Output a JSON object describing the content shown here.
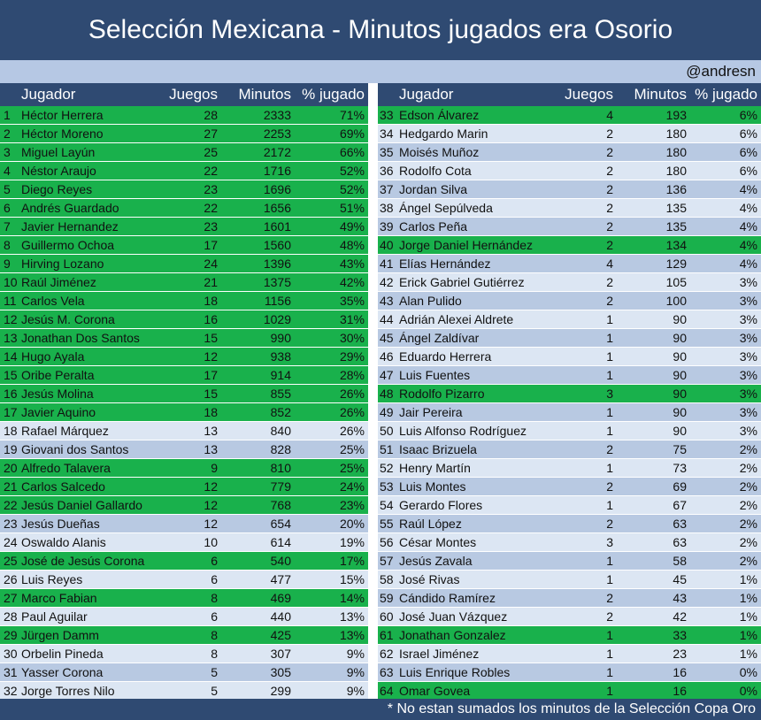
{
  "title": "Selección Mexicana - Minutos jugados era Osorio",
  "credit": "@andresn",
  "footer_note": "* No estan sumados los minutos de la Selección Copa Oro",
  "colors": {
    "header_bg": "#2f4a72",
    "green_row": "#19b14c",
    "light_row": "#dce6f3",
    "mid_row": "#b8c9e2",
    "credit_bg": "#b6c8e4"
  },
  "columns": {
    "player": "Jugador",
    "games": "Juegos",
    "minutes": "Minutos",
    "pct": "% jugado"
  },
  "left_rows": [
    {
      "n": "1",
      "name": "Héctor Herrera",
      "games": "28",
      "minutes": "2333",
      "pct": "71%",
      "green": true
    },
    {
      "n": "2",
      "name": "Héctor Moreno",
      "games": "27",
      "minutes": "2253",
      "pct": "69%",
      "green": true
    },
    {
      "n": "3",
      "name": "Miguel Layún",
      "games": "25",
      "minutes": "2172",
      "pct": "66%",
      "green": true
    },
    {
      "n": "4",
      "name": "Néstor Araujo",
      "games": "22",
      "minutes": "1716",
      "pct": "52%",
      "green": true
    },
    {
      "n": "5",
      "name": "Diego Reyes",
      "games": "23",
      "minutes": "1696",
      "pct": "52%",
      "green": true
    },
    {
      "n": "6",
      "name": "Andrés Guardado",
      "games": "22",
      "minutes": "1656",
      "pct": "51%",
      "green": true
    },
    {
      "n": "7",
      "name": "Javier Hernandez",
      "games": "23",
      "minutes": "1601",
      "pct": "49%",
      "green": true
    },
    {
      "n": "8",
      "name": "Guillermo Ochoa",
      "games": "17",
      "minutes": "1560",
      "pct": "48%",
      "green": true
    },
    {
      "n": "9",
      "name": "Hirving Lozano",
      "games": "24",
      "minutes": "1396",
      "pct": "43%",
      "green": true
    },
    {
      "n": "10",
      "name": "Raúl Jiménez",
      "games": "21",
      "minutes": "1375",
      "pct": "42%",
      "green": true
    },
    {
      "n": "11",
      "name": "Carlos Vela",
      "games": "18",
      "minutes": "1156",
      "pct": "35%",
      "green": true
    },
    {
      "n": "12",
      "name": "Jesús M. Corona",
      "games": "16",
      "minutes": "1029",
      "pct": "31%",
      "green": true
    },
    {
      "n": "13",
      "name": "Jonathan Dos Santos",
      "games": "15",
      "minutes": "990",
      "pct": "30%",
      "green": true
    },
    {
      "n": "14",
      "name": "Hugo Ayala",
      "games": "12",
      "minutes": "938",
      "pct": "29%",
      "green": true
    },
    {
      "n": "15",
      "name": "Oribe Peralta",
      "games": "17",
      "minutes": "914",
      "pct": "28%",
      "green": true
    },
    {
      "n": "16",
      "name": "Jesús Molina",
      "games": "15",
      "minutes": "855",
      "pct": "26%",
      "green": true
    },
    {
      "n": "17",
      "name": "Javier Aquino",
      "games": "18",
      "minutes": "852",
      "pct": "26%",
      "green": true
    },
    {
      "n": "18",
      "name": "Rafael Márquez",
      "games": "13",
      "minutes": "840",
      "pct": "26%",
      "green": false
    },
    {
      "n": "19",
      "name": "Giovani dos Santos",
      "games": "13",
      "minutes": "828",
      "pct": "25%",
      "green": false
    },
    {
      "n": "20",
      "name": "Alfredo Talavera",
      "games": "9",
      "minutes": "810",
      "pct": "25%",
      "green": true
    },
    {
      "n": "21",
      "name": "Carlos Salcedo",
      "games": "12",
      "minutes": "779",
      "pct": "24%",
      "green": true
    },
    {
      "n": "22",
      "name": "Jesús Daniel Gallardo",
      "games": "12",
      "minutes": "768",
      "pct": "23%",
      "green": true
    },
    {
      "n": "23",
      "name": "Jesús Dueñas",
      "games": "12",
      "minutes": "654",
      "pct": "20%",
      "green": false
    },
    {
      "n": "24",
      "name": "Oswaldo Alanis",
      "games": "10",
      "minutes": "614",
      "pct": "19%",
      "green": false
    },
    {
      "n": "25",
      "name": "José de Jesús Corona",
      "games": "6",
      "minutes": "540",
      "pct": "17%",
      "green": true
    },
    {
      "n": "26",
      "name": "Luis Reyes",
      "games": "6",
      "minutes": "477",
      "pct": "15%",
      "green": false
    },
    {
      "n": "27",
      "name": "Marco Fabian",
      "games": "8",
      "minutes": "469",
      "pct": "14%",
      "green": true
    },
    {
      "n": "28",
      "name": "Paul Aguilar",
      "games": "6",
      "minutes": "440",
      "pct": "13%",
      "green": false
    },
    {
      "n": "29",
      "name": "Jürgen Damm",
      "games": "8",
      "minutes": "425",
      "pct": "13%",
      "green": true
    },
    {
      "n": "30",
      "name": "Orbelin Pineda",
      "games": "8",
      "minutes": "307",
      "pct": "9%",
      "green": false
    },
    {
      "n": "31",
      "name": "Yasser Corona",
      "games": "5",
      "minutes": "305",
      "pct": "9%",
      "green": false
    },
    {
      "n": "32",
      "name": "Jorge Torres Nilo",
      "games": "5",
      "minutes": "299",
      "pct": "9%",
      "green": false
    }
  ],
  "right_rows": [
    {
      "n": "33",
      "name": "Edson Álvarez",
      "games": "4",
      "minutes": "193",
      "pct": "6%",
      "green": true
    },
    {
      "n": "34",
      "name": "Hedgardo Marin",
      "games": "2",
      "minutes": "180",
      "pct": "6%",
      "green": false
    },
    {
      "n": "35",
      "name": "Moisés Muñoz",
      "games": "2",
      "minutes": "180",
      "pct": "6%",
      "green": false
    },
    {
      "n": "36",
      "name": "Rodolfo Cota",
      "games": "2",
      "minutes": "180",
      "pct": "6%",
      "green": false
    },
    {
      "n": "37",
      "name": "Jordan Silva",
      "games": "2",
      "minutes": "136",
      "pct": "4%",
      "green": false
    },
    {
      "n": "38",
      "name": "Ángel Sepúlveda",
      "games": "2",
      "minutes": "135",
      "pct": "4%",
      "green": false
    },
    {
      "n": "39",
      "name": "Carlos Peña",
      "games": "2",
      "minutes": "135",
      "pct": "4%",
      "green": false
    },
    {
      "n": "40",
      "name": "Jorge Daniel Hernández",
      "games": "2",
      "minutes": "134",
      "pct": "4%",
      "green": true
    },
    {
      "n": "41",
      "name": "Elías Hernández",
      "games": "4",
      "minutes": "129",
      "pct": "4%",
      "green": false
    },
    {
      "n": "42",
      "name": "Erick Gabriel Gutiérrez",
      "games": "2",
      "minutes": "105",
      "pct": "3%",
      "green": false
    },
    {
      "n": "43",
      "name": "Alan Pulido",
      "games": "2",
      "minutes": "100",
      "pct": "3%",
      "green": false
    },
    {
      "n": "44",
      "name": "Adrián Alexei Aldrete",
      "games": "1",
      "minutes": "90",
      "pct": "3%",
      "green": false
    },
    {
      "n": "45",
      "name": "Ángel Zaldívar",
      "games": "1",
      "minutes": "90",
      "pct": "3%",
      "green": false
    },
    {
      "n": "46",
      "name": "Eduardo Herrera",
      "games": "1",
      "minutes": "90",
      "pct": "3%",
      "green": false
    },
    {
      "n": "47",
      "name": "Luis Fuentes",
      "games": "1",
      "minutes": "90",
      "pct": "3%",
      "green": false
    },
    {
      "n": "48",
      "name": "Rodolfo Pizarro",
      "games": "3",
      "minutes": "90",
      "pct": "3%",
      "green": true
    },
    {
      "n": "49",
      "name": "Jair Pereira",
      "games": "1",
      "minutes": "90",
      "pct": "3%",
      "green": false
    },
    {
      "n": "50",
      "name": "Luis Alfonso Rodríguez",
      "games": "1",
      "minutes": "90",
      "pct": "3%",
      "green": false
    },
    {
      "n": "51",
      "name": "Isaac Brizuela",
      "games": "2",
      "minutes": "75",
      "pct": "2%",
      "green": false
    },
    {
      "n": "52",
      "name": "Henry Martín",
      "games": "1",
      "minutes": "73",
      "pct": "2%",
      "green": false
    },
    {
      "n": "53",
      "name": "Luis Montes",
      "games": "2",
      "minutes": "69",
      "pct": "2%",
      "green": false
    },
    {
      "n": "54",
      "name": "Gerardo Flores",
      "games": "1",
      "minutes": "67",
      "pct": "2%",
      "green": false
    },
    {
      "n": "55",
      "name": "Raúl López",
      "games": "2",
      "minutes": "63",
      "pct": "2%",
      "green": false
    },
    {
      "n": "56",
      "name": "César Montes",
      "games": "3",
      "minutes": "63",
      "pct": "2%",
      "green": false
    },
    {
      "n": "57",
      "name": "Jesús Zavala",
      "games": "1",
      "minutes": "58",
      "pct": "2%",
      "green": false
    },
    {
      "n": "58",
      "name": "José Rivas",
      "games": "1",
      "minutes": "45",
      "pct": "1%",
      "green": false
    },
    {
      "n": "59",
      "name": "Cándido Ramírez",
      "games": "2",
      "minutes": "43",
      "pct": "1%",
      "green": false
    },
    {
      "n": "60",
      "name": "José Juan Vázquez",
      "games": "2",
      "minutes": "42",
      "pct": "1%",
      "green": false
    },
    {
      "n": "61",
      "name": "Jonathan Gonzalez",
      "games": "1",
      "minutes": "33",
      "pct": "1%",
      "green": true
    },
    {
      "n": "62",
      "name": "Israel Jiménez",
      "games": "1",
      "minutes": "23",
      "pct": "1%",
      "green": false
    },
    {
      "n": "63",
      "name": "Luis Enrique Robles",
      "games": "1",
      "minutes": "16",
      "pct": "0%",
      "green": false
    },
    {
      "n": "64",
      "name": "Omar Govea",
      "games": "1",
      "minutes": "16",
      "pct": "0%",
      "green": true
    }
  ]
}
